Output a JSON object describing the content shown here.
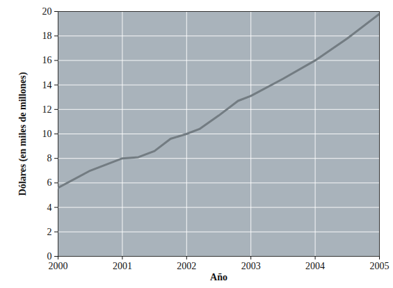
{
  "chart_data": {
    "type": "line",
    "x_label": "Año",
    "y_label": "Dólares (en miles de millones)",
    "x": [
      2000,
      2000.5,
      2001,
      2001.25,
      2001.5,
      2001.75,
      2002,
      2002.2,
      2002.5,
      2002.8,
      2003,
      2003.5,
      2004,
      2004.5,
      2005
    ],
    "values": [
      5.6,
      7.0,
      8.0,
      8.1,
      8.6,
      9.6,
      10.0,
      10.4,
      11.5,
      12.7,
      13.1,
      14.5,
      16.0,
      17.8,
      19.8
    ],
    "color": "#737c82",
    "xlim": [
      2000,
      2005
    ],
    "xticks": [
      2000,
      2001,
      2002,
      2003,
      2004,
      2005
    ],
    "ylim": [
      0,
      20
    ],
    "yticks": [
      0,
      2,
      4,
      6,
      8,
      10,
      12,
      14,
      16,
      18,
      20
    ],
    "grid": true
  }
}
